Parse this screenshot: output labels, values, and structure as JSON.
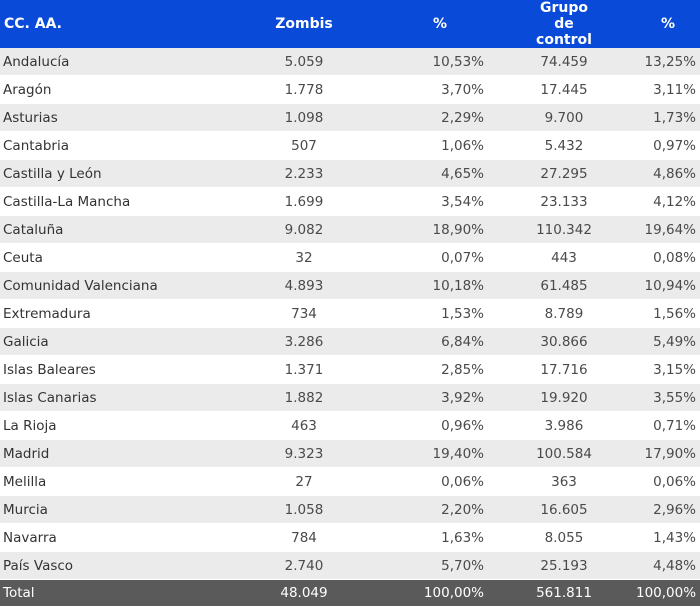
{
  "headers": [
    "CC. AA.",
    "Zombis",
    "%",
    "Grupo de control",
    "%"
  ],
  "rows": [
    [
      "Andalucía",
      "5.059",
      "10,53%",
      "74.459",
      "13,25%"
    ],
    [
      "Aragón",
      "1.778",
      "3,70%",
      "17.445",
      "3,11%"
    ],
    [
      "Asturias",
      "1.098",
      "2,29%",
      "9.700",
      "1,73%"
    ],
    [
      "Cantabria",
      "507",
      "1,06%",
      "5.432",
      "0,97%"
    ],
    [
      "Castilla y León",
      "2.233",
      "4,65%",
      "27.295",
      "4,86%"
    ],
    [
      "Castilla-La Mancha",
      "1.699",
      "3,54%",
      "23.133",
      "4,12%"
    ],
    [
      "Cataluña",
      "9.082",
      "18,90%",
      "110.342",
      "19,64%"
    ],
    [
      "Ceuta",
      "32",
      "0,07%",
      "443",
      "0,08%"
    ],
    [
      "Comunidad Valenciana",
      "4.893",
      "10,18%",
      "61.485",
      "10,94%"
    ],
    [
      "Extremadura",
      "734",
      "1,53%",
      "8.789",
      "1,56%"
    ],
    [
      "Galicia",
      "3.286",
      "6,84%",
      "30.866",
      "5,49%"
    ],
    [
      "Islas Baleares",
      "1.371",
      "2,85%",
      "17.716",
      "3,15%"
    ],
    [
      "Islas Canarias",
      "1.882",
      "3,92%",
      "19.920",
      "3,55%"
    ],
    [
      "La Rioja",
      "463",
      "0,96%",
      "3.986",
      "0,71%"
    ],
    [
      "Madrid",
      "9.323",
      "19,40%",
      "100.584",
      "17,90%"
    ],
    [
      "Melilla",
      "27",
      "0,06%",
      "363",
      "0,06%"
    ],
    [
      "Murcia",
      "1.058",
      "2,20%",
      "16.605",
      "2,96%"
    ],
    [
      "Navarra",
      "784",
      "1,63%",
      "8.055",
      "1,43%"
    ],
    [
      "País Vasco",
      "2.740",
      "5,70%",
      "25.193",
      "4,48%"
    ]
  ],
  "total": [
    "Total",
    "48.049",
    "100,00%",
    "561.811",
    "100,00%"
  ],
  "colors": {
    "header_bg": "#0a4ad8",
    "row_alt_bg": "#ebebeb",
    "total_bg": "#5a5a5a"
  }
}
